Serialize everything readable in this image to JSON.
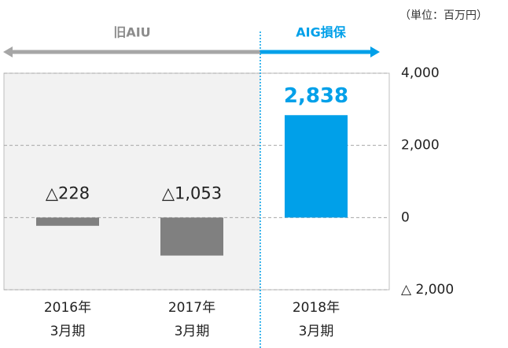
{
  "chart_data": {
    "type": "bar",
    "unit_note": "（単位：百万円）",
    "annotations": [
      "旧AIU",
      "AIG損保"
    ],
    "annotation_colors": [
      "#8c8c8c",
      "#00a0e9"
    ],
    "categories": [
      "2016年\n3月期",
      "2017年\n3月期",
      "2018年\n3月期"
    ],
    "values": [
      -228,
      -1053,
      2838
    ],
    "value_labels": [
      "△228",
      "△1,053",
      "2,838"
    ],
    "colors": [
      "#808080",
      "#808080",
      "#00a0e9"
    ],
    "label_colors": [
      "#222222",
      "#222222",
      "#00a0e9"
    ],
    "ylim": [
      -2000,
      4000
    ],
    "yticks": [
      {
        "value": 4000,
        "label": "4,000"
      },
      {
        "value": 2000,
        "label": "2,000"
      },
      0,
      {
        "value": -2000,
        "label": "△ 2,000"
      }
    ],
    "grid": true
  }
}
